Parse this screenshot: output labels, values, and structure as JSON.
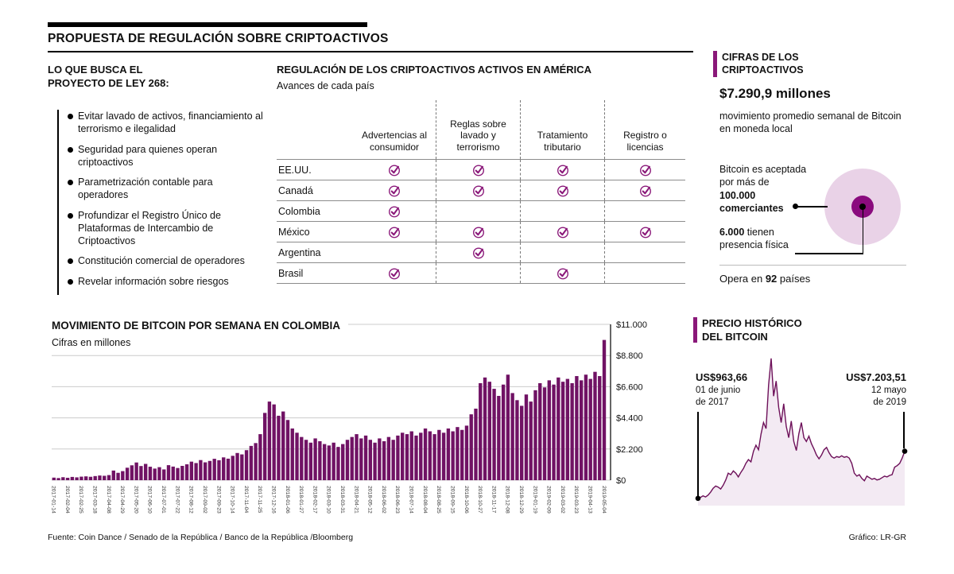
{
  "colors": {
    "accent": "#8a1879",
    "bar": "#701264",
    "line": "#6d1059",
    "area_fill": "#f3eaf3",
    "circle_light": "#e9d2e7",
    "circle_dark": "#8a0b7e",
    "grid": "#cccccc"
  },
  "header": {
    "title": "PROPUESTA DE REGULACIÓN SOBRE CRIPTOACTIVOS"
  },
  "law": {
    "title_line1": "LO QUE BUSCA EL",
    "title_line2": "PROYECTO DE LEY 268:",
    "items": [
      "Evitar lavado de activos, financiamiento al terrorismo e ilegalidad",
      "Seguridad para quienes operan criptoactivos",
      "Parametrización contable para operadores",
      "Profundizar el Registro Único de Plataformas de Intercambio de Criptoactivos",
      "Constitución comercial de operadores",
      "Revelar información sobre riesgos"
    ]
  },
  "regulation_table": {
    "title": "REGULACIÓN DE LOS CRIPTOACTIVOS ACTIVOS EN AMÉRICA",
    "subtitle": "Avances de cada país",
    "columns": [
      "Advertencias al consumidor",
      "Reglas sobre lavado y terrorismo",
      "Tratamiento tributario",
      "Registro o licencias"
    ],
    "rows": [
      {
        "country": "EE.UU.",
        "checks": [
          true,
          true,
          true,
          true
        ]
      },
      {
        "country": "Canadá",
        "checks": [
          true,
          true,
          true,
          true
        ]
      },
      {
        "country": "Colombia",
        "checks": [
          true,
          false,
          false,
          false
        ]
      },
      {
        "country": "México",
        "checks": [
          true,
          true,
          true,
          true
        ]
      },
      {
        "country": "Argentina",
        "checks": [
          false,
          true,
          false,
          false
        ]
      },
      {
        "country": "Brasil",
        "checks": [
          true,
          false,
          true,
          false
        ]
      }
    ]
  },
  "cifras": {
    "title_line1": "CIFRAS DE LOS",
    "title_line2": "CRIPTOACTIVOS",
    "amount": "$7.290,9 millones",
    "amount_desc": "movimiento promedio semanal de Bitcoin en moneda local",
    "merchants_normal": "Bitcoin es aceptada por más de",
    "merchants_bold": "100.000 comerciantes",
    "physical_bold": "6.000",
    "physical_rest": " tienen presencia física",
    "opera_pre": "Opera en",
    "opera_bold": "92",
    "opera_post": "países"
  },
  "chart_data": [
    {
      "type": "bar",
      "title": "MOVIMIENTO DE BITCOIN POR SEMANA EN COLOMBIA",
      "subtitle": "Cifras en millones",
      "xlabel": "",
      "ylabel": "",
      "ylim": [
        0,
        11000
      ],
      "grid": true,
      "y_tick_values": [
        0,
        2200,
        4400,
        6600,
        8800,
        11000
      ],
      "y_tick_labels": [
        "$0",
        "$2.200",
        "$4.400",
        "$6.600",
        "$8.800",
        "$11.000"
      ],
      "x_tick_every": 3,
      "x_tick_labels": [
        "2017-01-14",
        "2017-02-04",
        "2017-02-25",
        "2017-03-18",
        "2017-04-08",
        "2017-04-29",
        "2017-05-20",
        "2017-06-10",
        "2017-07-01",
        "2017-07-22",
        "2017-08-12",
        "2017-09-02",
        "2017-09-23",
        "2017-10-14",
        "2017-11-04",
        "2017-11-25",
        "2017-12-16",
        "2018-01-06",
        "2018-01-27",
        "2018-02-17",
        "2018-03-10",
        "2018-03-31",
        "2018-04-21",
        "2018-05-12",
        "2018-06-02",
        "2018-06-23",
        "2018-07-14",
        "2018-08-04",
        "2018-08-25",
        "2018-09-15",
        "2018-10-06",
        "2018-10-27",
        "2018-11-17",
        "2018-12-08",
        "2018-12-29",
        "2019-01-19",
        "2019-02-09",
        "2019-03-02",
        "2019-03-23",
        "2019-04-13",
        "2019-05-04"
      ],
      "values": [
        180,
        150,
        210,
        170,
        230,
        200,
        250,
        270,
        240,
        290,
        330,
        310,
        360,
        680,
        520,
        640,
        880,
        1050,
        1250,
        1000,
        1150,
        950,
        820,
        920,
        760,
        1060,
        960,
        860,
        1010,
        1120,
        1310,
        1210,
        1420,
        1260,
        1360,
        1510,
        1410,
        1610,
        1520,
        1720,
        1920,
        1820,
        2120,
        2420,
        2620,
        3250,
        4750,
        5550,
        5350,
        4550,
        4850,
        4250,
        3650,
        3350,
        3050,
        2850,
        2650,
        2950,
        2750,
        2550,
        2450,
        2650,
        2350,
        2550,
        2850,
        3050,
        3250,
        2950,
        3150,
        2850,
        2650,
        2950,
        2750,
        3050,
        2850,
        3150,
        3350,
        3250,
        3450,
        3150,
        3350,
        3650,
        3450,
        3250,
        3550,
        3350,
        3650,
        3450,
        3750,
        3550,
        3850,
        4650,
        5050,
        6850,
        7250,
        6950,
        6450,
        5950,
        6750,
        7450,
        6150,
        5650,
        5250,
        6050,
        5550,
        6350,
        6850,
        6550,
        7050,
        6750,
        7250,
        6950,
        7150,
        6850,
        7350,
        7050,
        7450,
        7150,
        7650,
        7350,
        9900
      ]
    },
    {
      "type": "area",
      "title": "PRECIO HISTÓRICO DEL BITCOIN",
      "title_lines": [
        "PRECIO HISTÓRICO",
        "DEL BITCOIN"
      ],
      "ylim": [
        0,
        20000
      ],
      "start_annotation": {
        "value": "US$963,66",
        "date_lines": [
          "01 de junio",
          "de 2017"
        ]
      },
      "end_annotation": {
        "value": "US$7.203,51",
        "date_lines": [
          "12 mayo",
          "de 2019"
        ]
      },
      "values": [
        963.66,
        1100,
        1300,
        1150,
        1400,
        1800,
        2300,
        2600,
        2450,
        2200,
        2700,
        3400,
        4300,
        4100,
        4600,
        4300,
        3800,
        4400,
        4900,
        5600,
        6100,
        5800,
        7200,
        8000,
        7400,
        9500,
        11000,
        10200,
        16000,
        19500,
        14500,
        16500,
        13000,
        11000,
        13500,
        10500,
        9000,
        11200,
        8500,
        7300,
        9500,
        11000,
        9000,
        8500,
        9200,
        8200,
        7500,
        6700,
        6200,
        6700,
        7400,
        7700,
        7000,
        6500,
        6300,
        6500,
        6400,
        6600,
        6400,
        6500,
        6300,
        5600,
        4300,
        3900,
        4100,
        3600,
        3300,
        3900,
        3700,
        3500,
        3600,
        3400,
        3500,
        3700,
        3900,
        3800,
        4000,
        4100,
        5100,
        5300,
        5600,
        6300,
        7203.51
      ]
    }
  ],
  "footer": {
    "source": "Fuente: Coin Dance / Senado de la República / Banco de la República /Bloomberg",
    "credit": "Gráfico: LR-GR"
  }
}
